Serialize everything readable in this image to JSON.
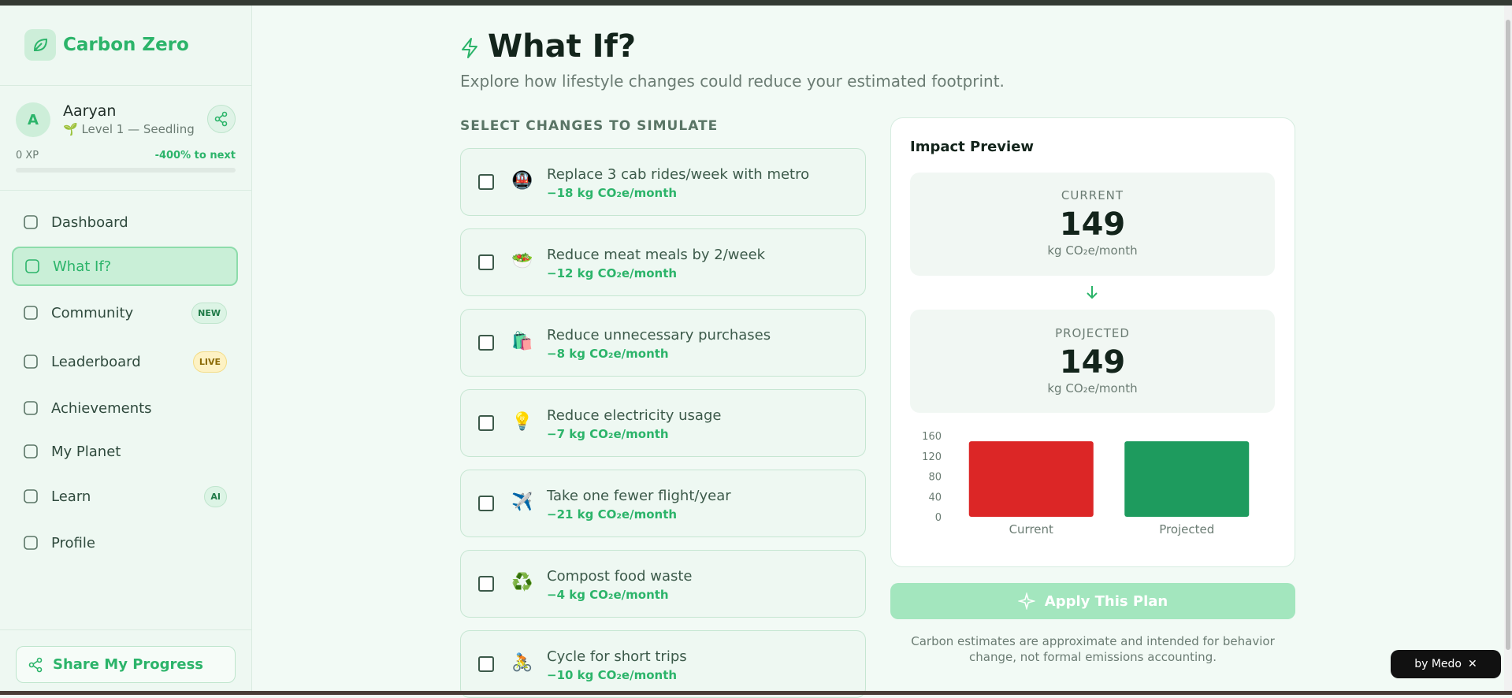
{
  "sidebar": {
    "brand": "Carbon Zero",
    "user": {
      "initial": "A",
      "name": "Aaryan",
      "level": "🌱 Level 1 — Seedling",
      "xp": "0 XP",
      "next": "-400% to next"
    },
    "nav": [
      {
        "label": "Dashboard"
      },
      {
        "label": "What If?"
      },
      {
        "label": "Community",
        "badge": "NEW"
      },
      {
        "label": "Leaderboard",
        "badge": "LIVE"
      },
      {
        "label": "Achievements"
      },
      {
        "label": "My Planet"
      },
      {
        "label": "Learn",
        "badge": "AI"
      },
      {
        "label": "Profile"
      }
    ],
    "share": "Share My Progress"
  },
  "main": {
    "title": "What If?",
    "subtitle": "Explore how lifestyle changes could reduce your estimated footprint.",
    "section_label": "SELECT CHANGES TO SIMULATE",
    "options": [
      {
        "icon": "🚇",
        "label": "Replace 3 cab rides/week with metro",
        "impact": "−18 kg CO₂e/month"
      },
      {
        "icon": "🥗",
        "label": "Reduce meat meals by 2/week",
        "impact": "−12 kg CO₂e/month"
      },
      {
        "icon": "🛍️",
        "label": "Reduce unnecessary purchases",
        "impact": "−8 kg CO₂e/month"
      },
      {
        "icon": "💡",
        "label": "Reduce electricity usage",
        "impact": "−7 kg CO₂e/month"
      },
      {
        "icon": "✈️",
        "label": "Take one fewer flight/year",
        "impact": "−21 kg CO₂e/month"
      },
      {
        "icon": "♻️",
        "label": "Compost food waste",
        "impact": "−4 kg CO₂e/month"
      },
      {
        "icon": "🚴",
        "label": "Cycle for short trips",
        "impact": "−10 kg CO₂e/month"
      }
    ]
  },
  "preview": {
    "title": "Impact Preview",
    "current": {
      "label": "CURRENT",
      "value": 149,
      "unit": "kg CO₂e/month"
    },
    "projected": {
      "label": "PROJECTED",
      "value": 149,
      "unit": "kg CO₂e/month"
    },
    "apply": "Apply This Plan",
    "note": "Carbon estimates are approximate and intended for behavior change, not formal emissions accounting."
  },
  "chart_data": {
    "type": "bar",
    "categories": [
      "Current",
      "Projected"
    ],
    "values": [
      149,
      149
    ],
    "colors": [
      "#dc2626",
      "#1e9b5e"
    ],
    "ylim": [
      0,
      160
    ],
    "yticks": [
      0,
      40,
      80,
      120,
      160
    ]
  },
  "badge": "by Medo"
}
